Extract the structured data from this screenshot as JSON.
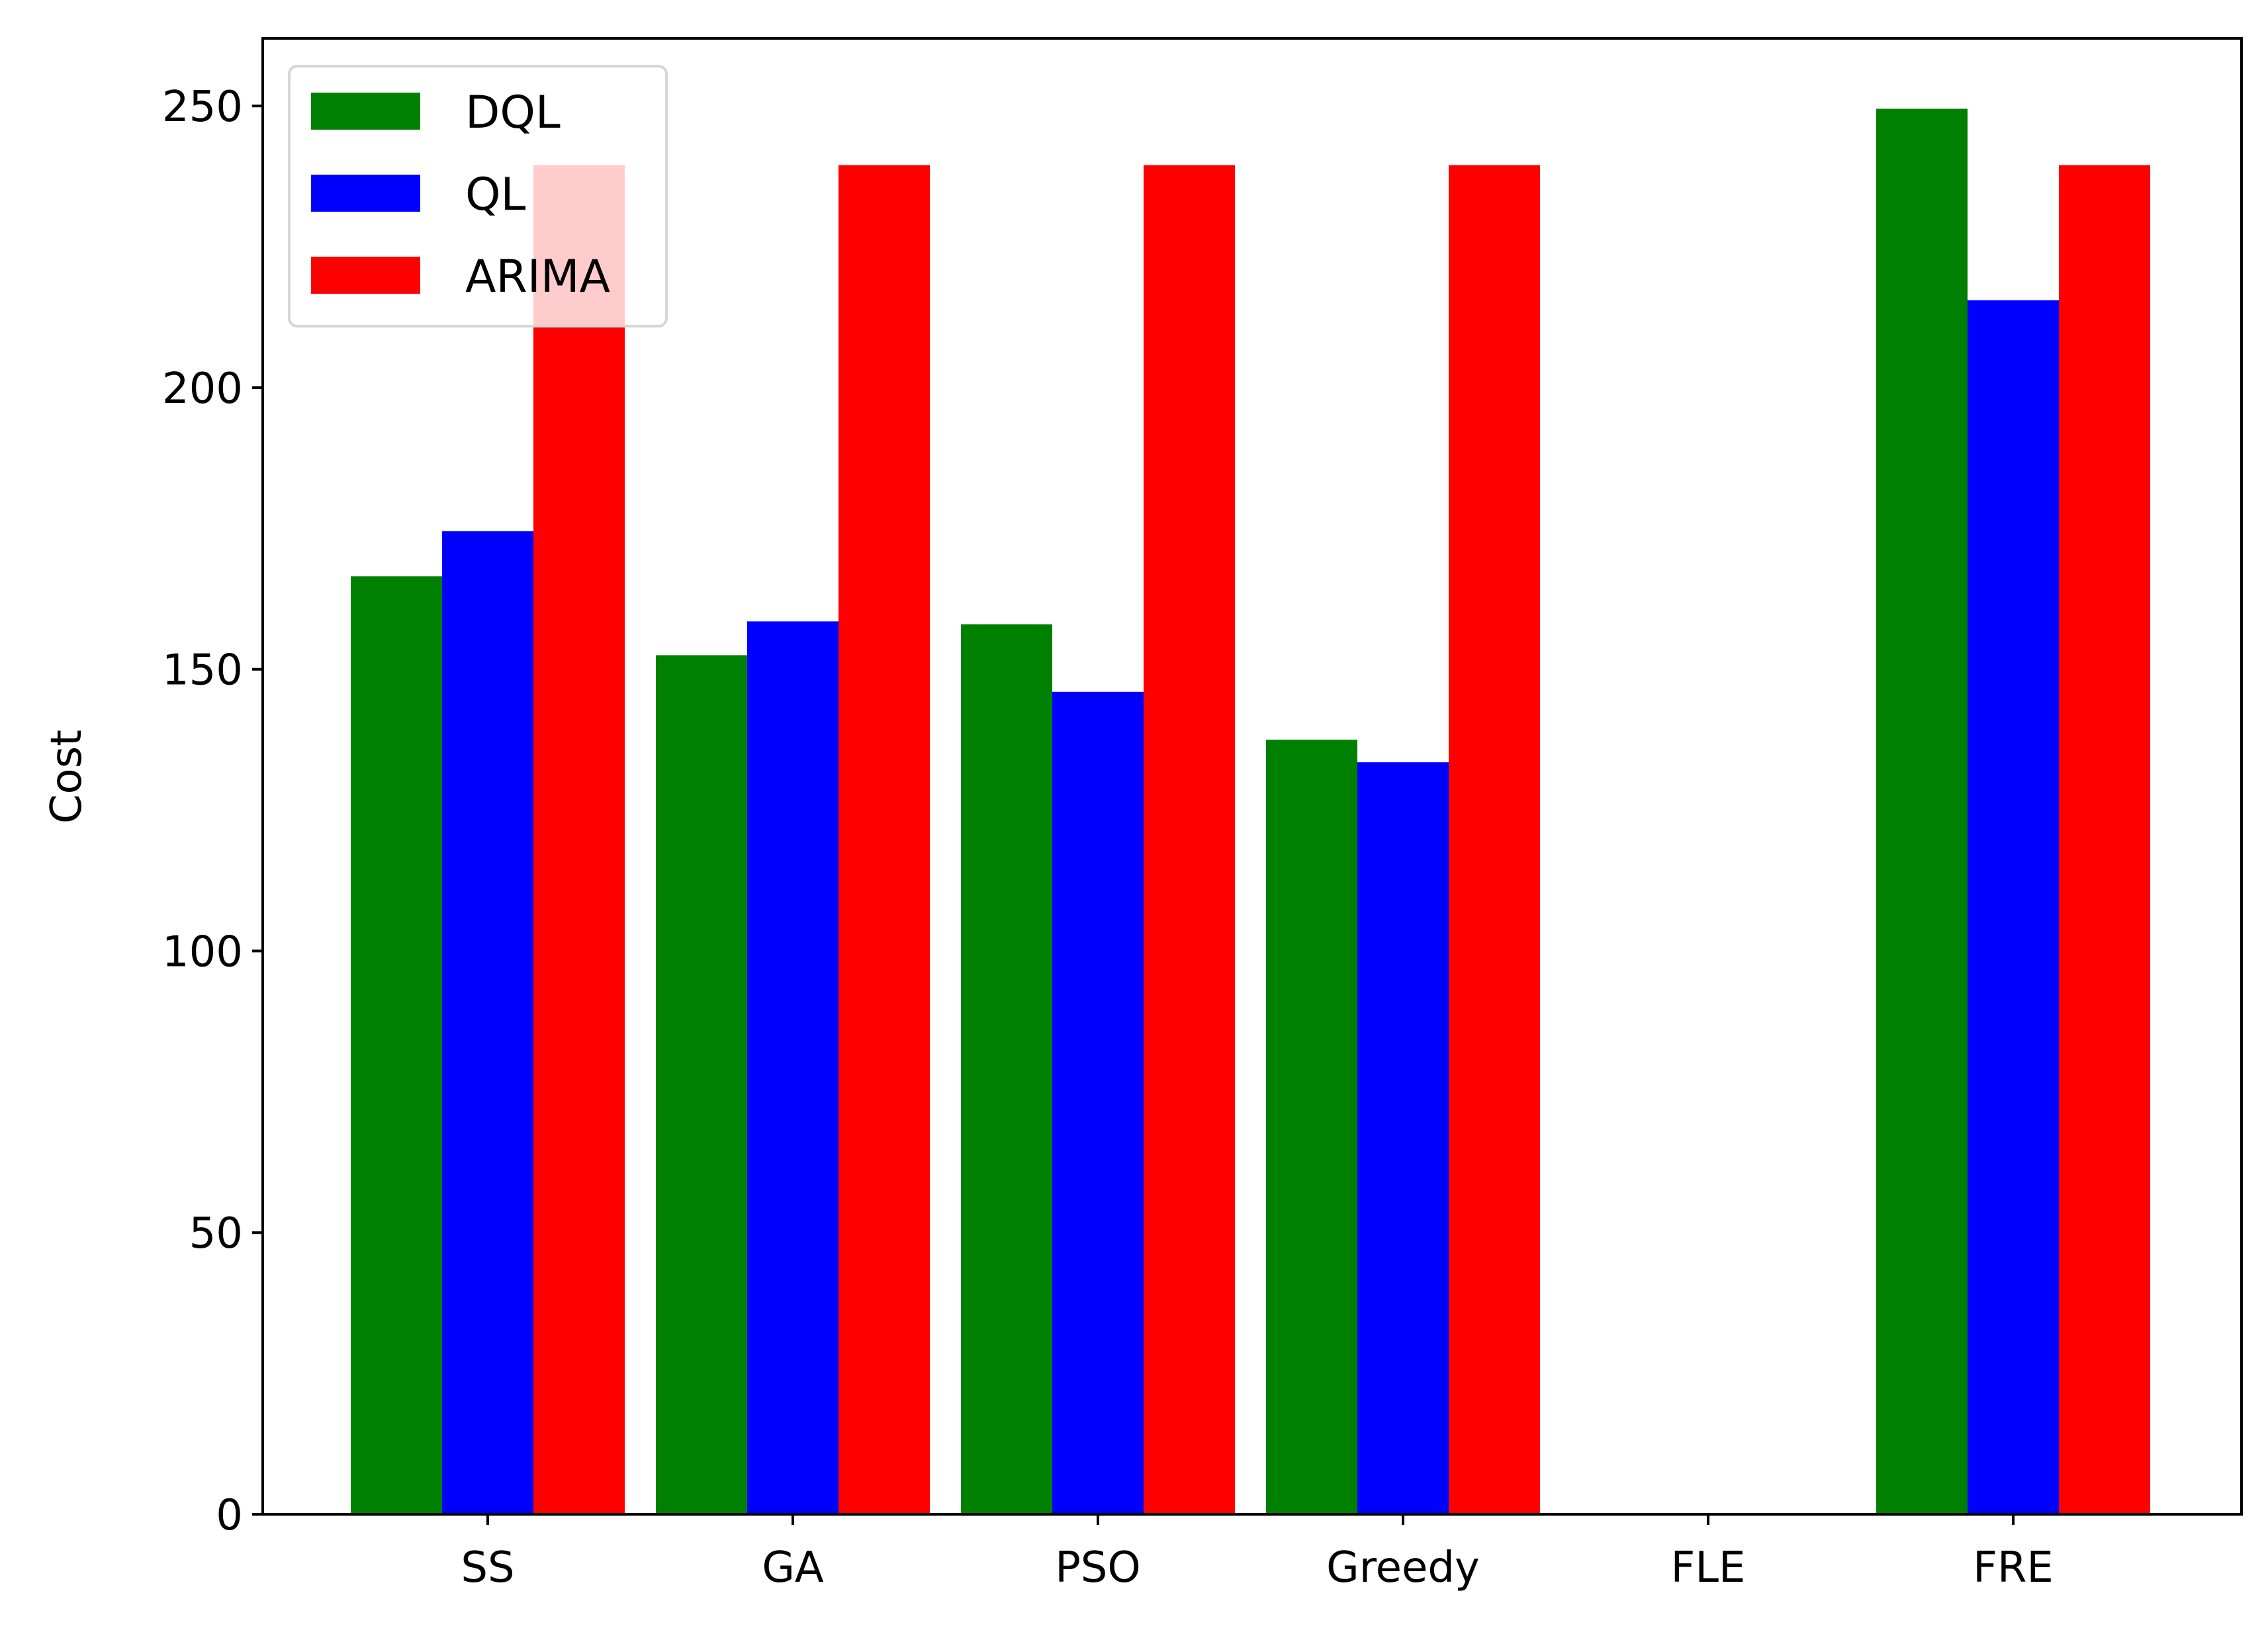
{
  "chart_data": {
    "type": "bar",
    "categories": [
      "SS",
      "GA",
      "PSO",
      "Greedy",
      "FLE",
      "FRE"
    ],
    "series": [
      {
        "name": "DQL",
        "color": "#008000",
        "values": [
          166.5,
          152.5,
          158,
          137.5,
          null,
          249.5
        ]
      },
      {
        "name": "QL",
        "color": "#0000ff",
        "values": [
          174.5,
          158.5,
          146,
          133.5,
          null,
          215.5
        ]
      },
      {
        "name": "ARIMA",
        "color": "#ff0000",
        "values": [
          239.5,
          239.5,
          239.5,
          239.5,
          null,
          239.5
        ]
      }
    ],
    "title": "",
    "xlabel": "",
    "ylabel": "Cost",
    "ylim": [
      0,
      262
    ],
    "yticks": [
      0,
      50,
      100,
      150,
      200,
      250
    ],
    "grid": false,
    "legend_position": "top-left"
  }
}
